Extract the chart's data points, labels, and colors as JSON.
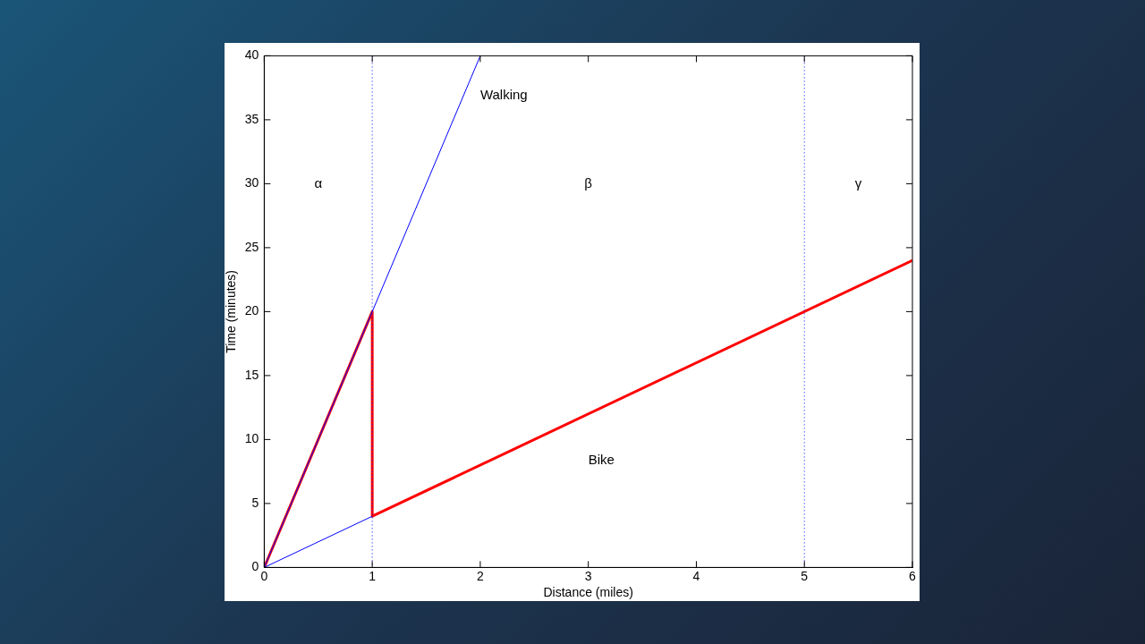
{
  "chart_data": {
    "type": "line",
    "xlabel": "Distance (miles)",
    "ylabel": "Time (minutes)",
    "xlim": [
      0,
      6
    ],
    "xticks": [
      0,
      1,
      2,
      3,
      4,
      5,
      6
    ],
    "ylim": [
      0,
      40
    ],
    "yticks": [
      0,
      5,
      10,
      15,
      20,
      25,
      30,
      35,
      40
    ],
    "grid": false,
    "legend": false,
    "marker": "none",
    "series": [
      {
        "name": "Walking",
        "color": "#0000ff",
        "x": [
          0,
          2
        ],
        "values": [
          0,
          40
        ]
      },
      {
        "color": "#0000ff",
        "x": [
          0,
          1
        ],
        "values": [
          0,
          4
        ]
      },
      {
        "name": "Bike",
        "color": "#ff0000",
        "x": [
          0,
          1,
          1,
          6
        ],
        "values": [
          0,
          20,
          4,
          24
        ]
      }
    ],
    "ref_lines": [
      {
        "axis": "x",
        "value": 1,
        "color": "#0000ff",
        "line_style": "dotted"
      },
      {
        "axis": "x",
        "value": 5,
        "color": "#0000ff",
        "line_style": "dotted"
      }
    ],
    "annotations": [
      "α",
      "β",
      "γ"
    ]
  }
}
